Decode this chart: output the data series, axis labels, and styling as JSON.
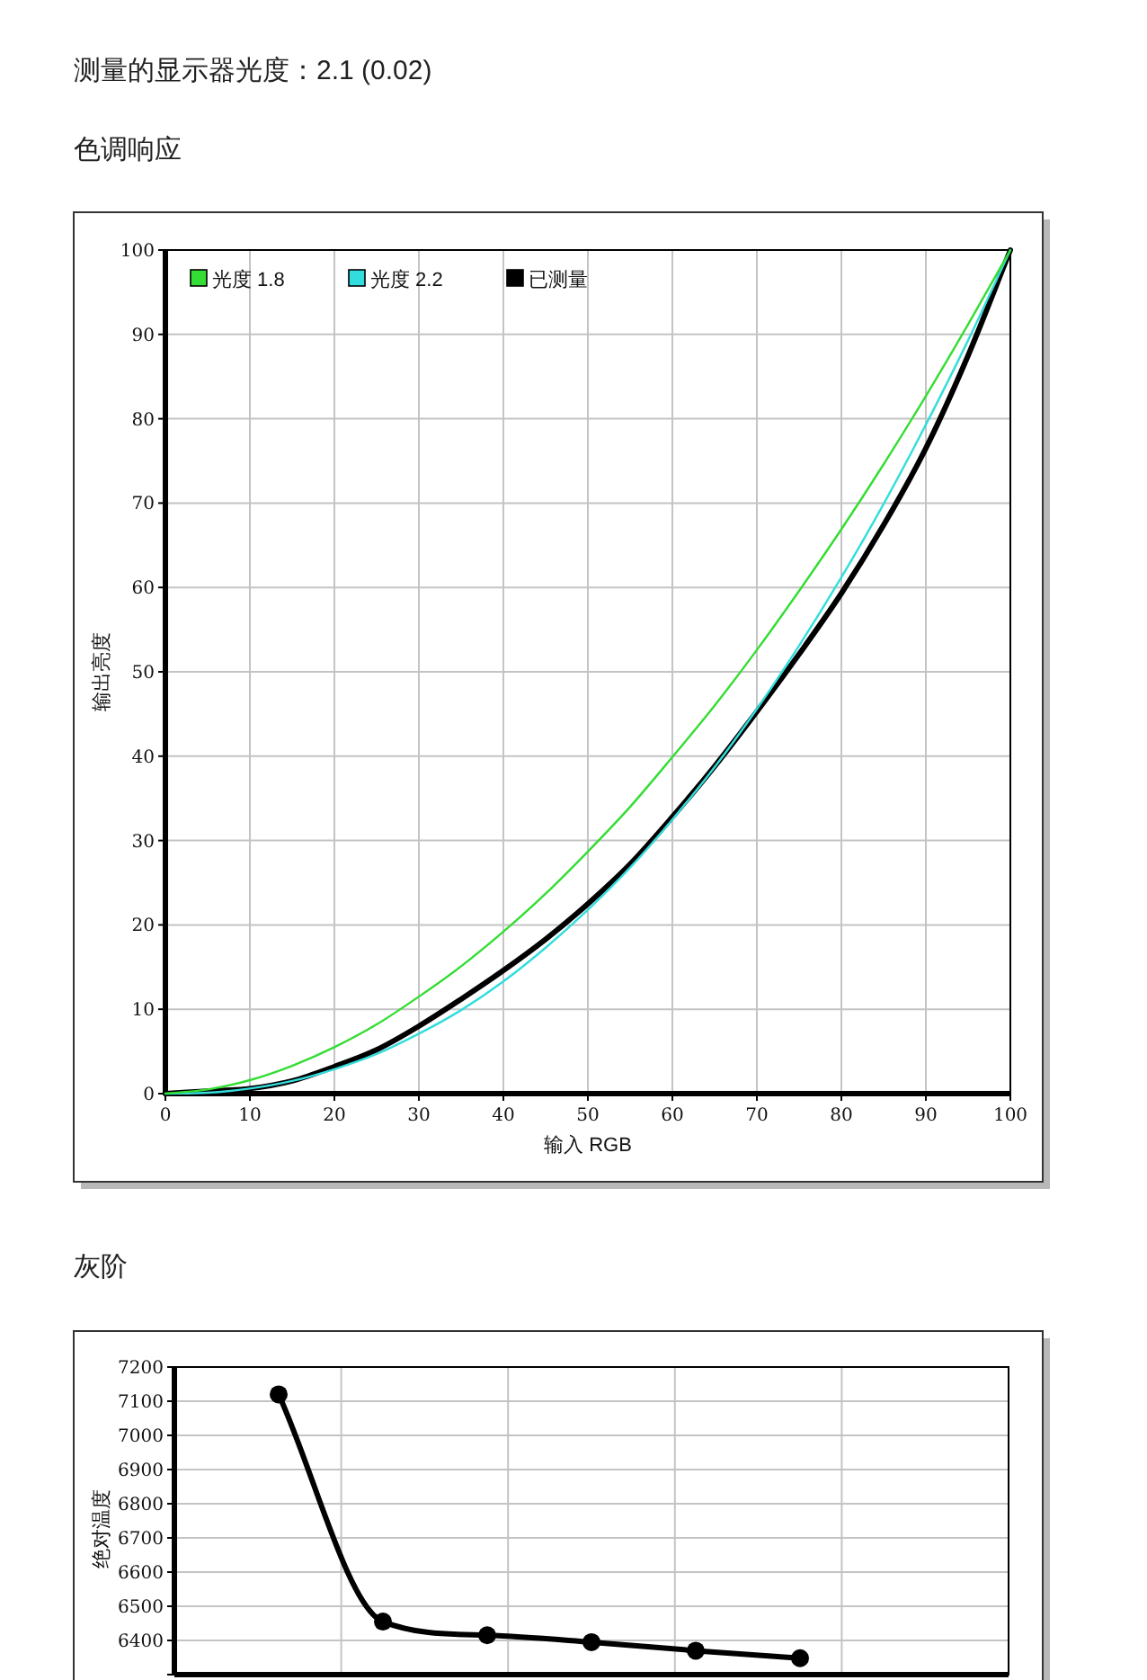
{
  "chart_data": [
    {
      "type": "line",
      "title": "色调响应",
      "annotations": [
        "测量的显示器光度：2.1 (0.02)"
      ],
      "xlabel": "输入 RGB",
      "ylabel": "输出亮度",
      "x": [
        0,
        5,
        10,
        15,
        20,
        25,
        30,
        35,
        40,
        45,
        50,
        55,
        60,
        65,
        70,
        75,
        80,
        85,
        90,
        95,
        100
      ],
      "series": [
        {
          "name": "光度 1.8",
          "color": "#33dd33",
          "values": [
            0,
            0.5,
            1.6,
            3.3,
            5.5,
            8.2,
            11.5,
            15.1,
            19.2,
            23.7,
            28.7,
            34,
            39.9,
            46,
            52.6,
            59.6,
            66.9,
            74.6,
            82.7,
            91.2,
            100
          ]
        },
        {
          "name": "光度 2.2",
          "color": "#33dddd",
          "values": [
            0,
            0.1,
            0.6,
            1.5,
            2.9,
            4.7,
            7.1,
            9.9,
            13.3,
            17.3,
            21.8,
            26.8,
            32.5,
            38.7,
            45.6,
            53.1,
            61.2,
            69.9,
            79.3,
            89.3,
            100
          ]
        },
        {
          "name": "已测量",
          "color": "#000000",
          "values": [
            0,
            0.3,
            0.6,
            1.5,
            3.2,
            5.2,
            8.0,
            11.2,
            14.6,
            18.3,
            22.5,
            27.2,
            32.8,
            38.8,
            45.3,
            52.1,
            59.3,
            67.4,
            76.5,
            87.5,
            100
          ]
        }
      ],
      "xlim": [
        0,
        100
      ],
      "xticks": [
        0,
        10,
        20,
        30,
        40,
        50,
        60,
        70,
        80,
        90,
        100
      ],
      "ylim": [
        0,
        100
      ],
      "yticks": [
        0,
        10,
        20,
        30,
        40,
        50,
        60,
        70,
        80,
        90,
        100
      ],
      "grid": true,
      "legend": "top left"
    },
    {
      "type": "line",
      "title": "灰阶",
      "ylabel": "绝对温度",
      "categories": [
        null,
        null,
        null,
        null,
        null,
        null,
        null,
        null,
        null
      ],
      "series": [
        {
          "color": "#000000",
          "values": [
            null,
            7120,
            6455,
            6415,
            6395,
            6370,
            6348,
            null,
            null
          ]
        }
      ],
      "ylim": [
        6300,
        7200
      ],
      "yticks": [
        {
          "value": 6300,
          "label": null
        },
        6400,
        6500,
        6600,
        6700,
        6800,
        6900,
        7000,
        7100,
        7200
      ],
      "grid": true,
      "marker": "circle",
      "tick_labels": "y"
    }
  ]
}
